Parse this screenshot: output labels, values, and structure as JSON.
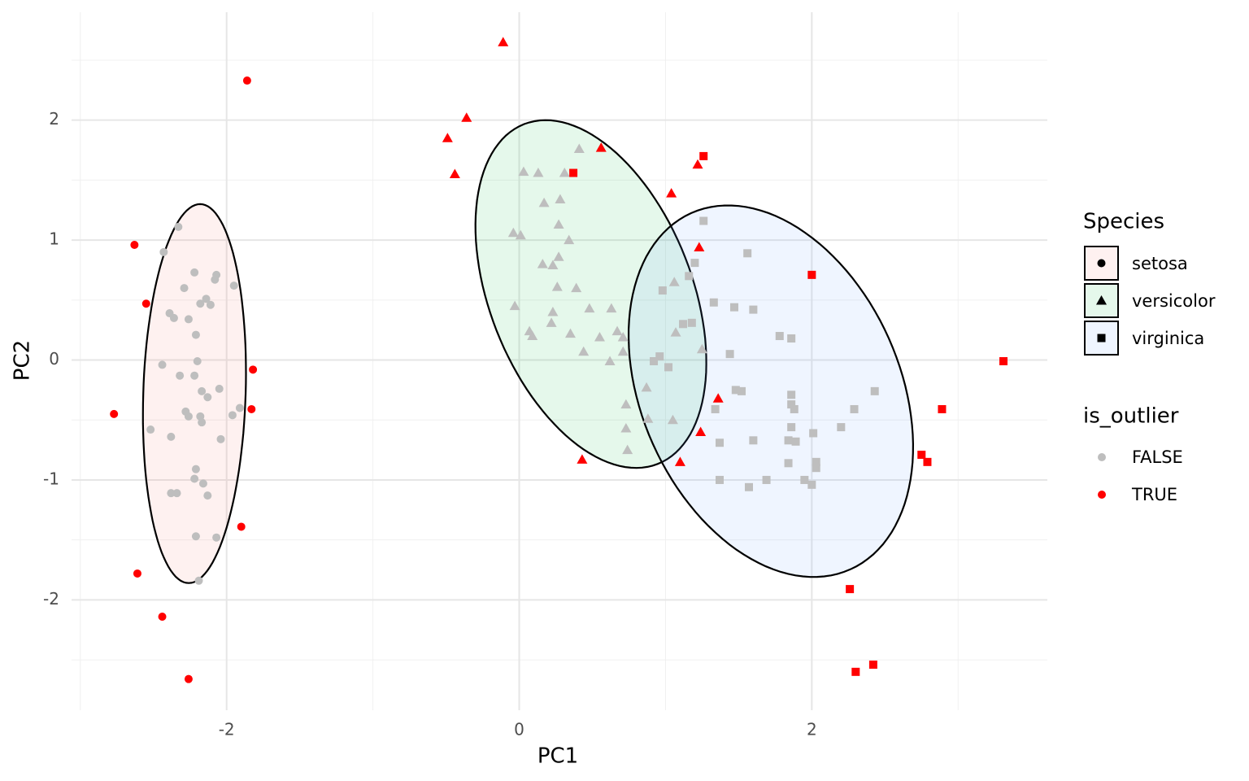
{
  "chart_data": {
    "type": "scatter",
    "x_label": "PC1",
    "y_label": "PC2",
    "xlim": [
      -3.06,
      3.61
    ],
    "ylim": [
      -2.92,
      2.9
    ],
    "xticks": [
      -2,
      0,
      2
    ],
    "yticks": [
      -2,
      -1,
      0,
      1,
      2
    ],
    "xminor": [
      -3,
      -1,
      1,
      3
    ],
    "yminor": [
      -2.5,
      -1.5,
      -0.5,
      0.5,
      1.5,
      2.5
    ],
    "grid": true,
    "legend_species_title": "Species",
    "legend_outlier": {
      "title": "is_outlier",
      "entries": [
        {
          "label": "FALSE",
          "color": "#bebebe"
        },
        {
          "label": "TRUE",
          "color": "#ff0000"
        }
      ]
    },
    "series": [
      {
        "name": "setosa",
        "shape": "circle",
        "fill": "#F8766D",
        "ellipse": {
          "center": [
            -2.22,
            -0.28
          ],
          "axis1": [
            0.039,
            1.58
          ],
          "axis2": [
            0.35,
            0
          ]
        },
        "x": [
          -2.33,
          -2.43,
          -2.22,
          -2.07,
          -2.08,
          -2.29,
          -1.95,
          -2.14,
          -2.18,
          -2.11,
          -2.39,
          -2.36,
          -2.26,
          -2.21,
          -2.44,
          -2.2,
          -2.32,
          -2.22,
          -2.05,
          -2.17,
          -2.13,
          -2.28,
          -2.26,
          -2.18,
          -2.17,
          -1.91,
          -1.96,
          -2.52,
          -2.38,
          -2.04,
          -2.21,
          -2.22,
          -2.16,
          -2.38,
          -2.34,
          -2.13,
          -2.21,
          -2.07,
          -2.19
        ],
        "y": [
          1.11,
          0.9,
          0.73,
          0.71,
          0.67,
          0.6,
          0.62,
          0.51,
          0.47,
          0.46,
          0.39,
          0.35,
          0.34,
          0.21,
          -0.04,
          -0.01,
          -0.13,
          -0.13,
          -0.24,
          -0.26,
          -0.31,
          -0.43,
          -0.47,
          -0.47,
          -0.52,
          -0.4,
          -0.46,
          -0.58,
          -0.64,
          -0.66,
          -0.91,
          -0.99,
          -1.03,
          -1.11,
          -1.11,
          -1.13,
          -1.47,
          -1.48,
          -1.84
        ],
        "outlier_x": [
          -1.86,
          -2.63,
          -2.55,
          -2.77,
          -1.82,
          -1.83,
          -1.9,
          -2.61,
          -2.44,
          -2.26
        ],
        "outlier_y": [
          2.33,
          0.96,
          0.47,
          -0.45,
          -0.08,
          -0.41,
          -1.39,
          -1.78,
          -2.14,
          -2.66
        ]
      },
      {
        "name": "versicolor",
        "shape": "triangle",
        "fill": "#00BA38",
        "ellipse": {
          "center": [
            0.49,
            0.55
          ],
          "axis1": [
            -0.456,
            1.417
          ],
          "axis2": [
            0.644,
            0.307
          ]
        },
        "x": [
          0.41,
          0.03,
          0.13,
          0.31,
          0.17,
          0.28,
          0.27,
          -0.04,
          0.01,
          0.34,
          0.16,
          0.23,
          0.27,
          0.26,
          0.39,
          -0.03,
          0.23,
          0.48,
          0.63,
          1.06,
          0.22,
          0.07,
          0.09,
          0.35,
          0.55,
          0.67,
          0.71,
          1.07,
          0.44,
          0.71,
          0.62,
          1.25,
          0.87,
          0.73,
          0.88,
          1.05,
          0.73,
          0.74
        ],
        "y": [
          1.76,
          1.57,
          1.56,
          1.56,
          1.31,
          1.34,
          1.13,
          1.06,
          1.04,
          1.0,
          0.8,
          0.79,
          0.86,
          0.61,
          0.6,
          0.45,
          0.4,
          0.43,
          0.43,
          0.65,
          0.31,
          0.24,
          0.2,
          0.22,
          0.19,
          0.24,
          0.19,
          0.23,
          0.07,
          0.07,
          -0.01,
          0.09,
          -0.23,
          -0.37,
          -0.49,
          -0.5,
          -0.57,
          -0.75
        ],
        "outlier_x": [
          -0.11,
          -0.36,
          -0.49,
          -0.44,
          0.56,
          1.04,
          1.22,
          1.23,
          1.36,
          1.24,
          1.1,
          0.43
        ],
        "outlier_y": [
          2.65,
          2.02,
          1.85,
          1.55,
          1.77,
          1.39,
          1.63,
          0.94,
          -0.32,
          -0.6,
          -0.85,
          -0.83
        ]
      },
      {
        "name": "virginica",
        "shape": "square",
        "fill": "#619CFF",
        "ellipse": {
          "center": [
            1.72,
            -0.26
          ],
          "axis1": [
            -0.544,
            1.485
          ],
          "axis2": [
            0.806,
            0.441
          ]
        },
        "x": [
          1.26,
          1.56,
          1.2,
          1.16,
          0.98,
          1.33,
          1.47,
          1.6,
          1.12,
          1.18,
          1.78,
          1.86,
          1.44,
          0.96,
          0.92,
          1.02,
          1.48,
          1.52,
          1.86,
          2.43,
          1.86,
          1.88,
          2.29,
          1.34,
          1.86,
          2.2,
          2.01,
          1.37,
          1.6,
          1.84,
          1.89,
          1.84,
          2.03,
          2.03,
          1.37,
          1.69,
          1.95,
          2.0,
          1.57
        ],
        "y": [
          1.16,
          0.89,
          0.81,
          0.7,
          0.58,
          0.48,
          0.44,
          0.42,
          0.3,
          0.31,
          0.2,
          0.18,
          0.05,
          0.03,
          -0.01,
          -0.06,
          -0.25,
          -0.26,
          -0.29,
          -0.26,
          -0.37,
          -0.41,
          -0.41,
          -0.41,
          -0.56,
          -0.56,
          -0.61,
          -0.69,
          -0.67,
          -0.67,
          -0.68,
          -0.86,
          -0.85,
          -0.9,
          -1.0,
          -1.0,
          -1.0,
          -1.04,
          -1.06
        ],
        "outlier_x": [
          0.37,
          1.26,
          2.0,
          3.31,
          2.89,
          2.75,
          2.79,
          2.26,
          2.3,
          2.42
        ],
        "outlier_y": [
          1.56,
          1.7,
          0.71,
          -0.01,
          -0.41,
          -0.79,
          -0.85,
          -1.91,
          -2.6,
          -2.54
        ]
      }
    ]
  }
}
